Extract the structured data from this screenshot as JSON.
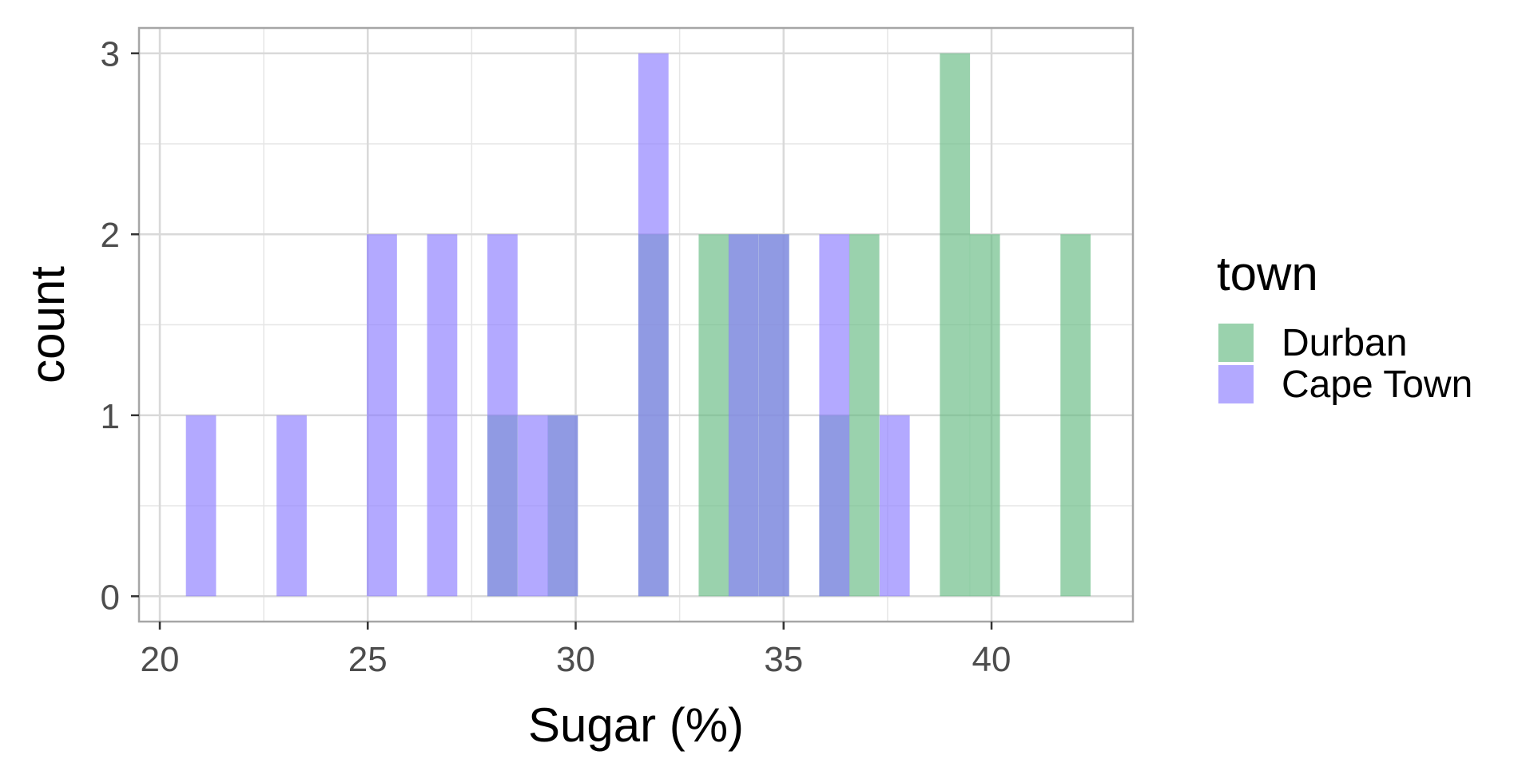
{
  "chart_data": {
    "type": "bar",
    "subtype": "overlapping-histogram",
    "title": "",
    "xlabel": "Sugar (%)",
    "ylabel": "count",
    "xlim": [
      19.5,
      43.4
    ],
    "ylim": [
      -0.14,
      3.14
    ],
    "x_ticks": [
      20,
      25,
      30,
      35,
      40
    ],
    "x_tick_labels": [
      "20",
      "25",
      "30",
      "35",
      "40"
    ],
    "y_ticks": [
      0,
      1,
      2,
      3
    ],
    "y_tick_labels": [
      "0",
      "1",
      "2",
      "3"
    ],
    "grid": true,
    "bin_width": 0.725,
    "bin_centers": [
      20.99,
      21.72,
      22.44,
      23.17,
      23.89,
      24.62,
      25.34,
      26.07,
      26.79,
      27.52,
      28.24,
      28.97,
      29.69,
      30.42,
      31.14,
      31.87,
      32.59,
      33.32,
      34.04,
      34.77,
      35.49,
      36.22,
      36.94,
      37.67,
      38.39,
      39.12,
      39.84,
      40.57,
      41.29,
      42.02
    ],
    "legend": {
      "title": "town",
      "position": "right"
    },
    "series": [
      {
        "name": "Durban",
        "color": "#66bb82",
        "values": [
          0,
          0,
          0,
          0,
          0,
          0,
          0,
          0,
          0,
          0,
          1,
          0,
          1,
          0,
          0,
          2,
          0,
          2,
          2,
          2,
          0,
          1,
          2,
          0,
          0,
          3,
          2,
          0,
          0,
          2
        ]
      },
      {
        "name": "Cape Town",
        "color": "#8c7cff",
        "values": [
          1,
          0,
          0,
          1,
          0,
          0,
          2,
          0,
          2,
          0,
          2,
          1,
          1,
          0,
          0,
          3,
          0,
          0,
          2,
          2,
          0,
          2,
          0,
          1,
          0,
          0,
          0,
          0,
          0,
          0
        ]
      }
    ]
  }
}
